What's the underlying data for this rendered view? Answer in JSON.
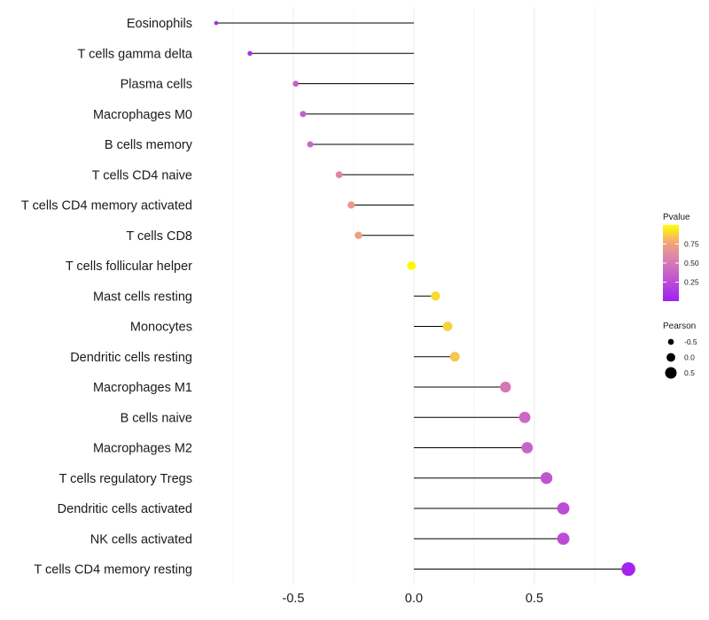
{
  "chart_data": {
    "type": "lollipop",
    "categories": [
      "Eosinophils",
      "T cells gamma delta",
      "Plasma cells",
      "Macrophages M0",
      "B cells memory",
      "T cells CD4 naive",
      "T cells CD4 memory activated",
      "T cells CD8",
      "T cells follicular helper",
      "Mast cells resting",
      "Monocytes",
      "Dendritic cells resting",
      "Macrophages M1",
      "B cells naive",
      "Macrophages M2",
      "T cells regulatory  Tregs",
      "Dendritic cells activated",
      "NK cells activated",
      "T cells CD4 memory resting"
    ],
    "pearson": [
      -0.82,
      -0.68,
      -0.49,
      -0.46,
      -0.43,
      -0.31,
      -0.26,
      -0.23,
      -0.01,
      0.09,
      0.14,
      0.17,
      0.38,
      0.46,
      0.47,
      0.55,
      0.62,
      0.62,
      0.89
    ],
    "pvalue": [
      0.05,
      0.1,
      0.35,
      0.35,
      0.4,
      0.6,
      0.7,
      0.75,
      0.98,
      0.9,
      0.88,
      0.85,
      0.5,
      0.4,
      0.38,
      0.3,
      0.25,
      0.25,
      0.02
    ],
    "xlim": [
      -0.86,
      0.93
    ],
    "xticks": [
      -0.5,
      0.0,
      0.5
    ],
    "xtick_labels": [
      "-0.5",
      "0.0",
      "0.5"
    ],
    "xlabel": "",
    "ylabel": "",
    "title": "",
    "grid": true,
    "legend_position": "right",
    "color_legend": {
      "title": "Pvalue",
      "ticks": [
        0.75,
        0.5,
        0.25
      ],
      "tick_labels": [
        "0.75",
        "0.50",
        "0.25"
      ],
      "low_color": "#a020f0",
      "high_color": "#ffff00"
    },
    "size_legend": {
      "title": "Pearson",
      "values": [
        -0.5,
        0.0,
        0.5
      ],
      "labels": [
        "-0.5",
        "0.0",
        "0.5"
      ]
    }
  }
}
